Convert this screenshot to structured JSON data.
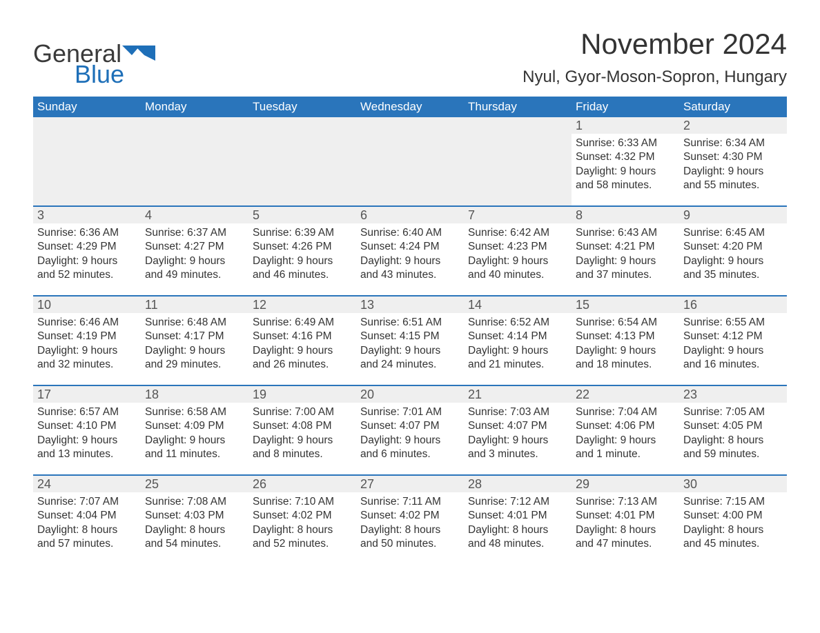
{
  "brand": {
    "word1": "General",
    "word2": "Blue",
    "word1_color": "#3a3a3a",
    "word2_color": "#1e6fb8",
    "flag_color": "#1e6fb8"
  },
  "title": {
    "month": "November 2024",
    "location": "Nyul, Gyor-Moson-Sopron, Hungary",
    "title_fontsize": 42,
    "location_fontsize": 24,
    "text_color": "#333333"
  },
  "calendar": {
    "header_bg": "#2a75bb",
    "header_fg": "#ffffff",
    "week_border_color": "#2a75bb",
    "daynum_bg": "#efefef",
    "daynum_fg": "#555555",
    "body_fg": "#333333",
    "background": "#ffffff",
    "body_fontsize": 15.5,
    "columns": [
      "Sunday",
      "Monday",
      "Tuesday",
      "Wednesday",
      "Thursday",
      "Friday",
      "Saturday"
    ],
    "weeks": [
      [
        {
          "empty": true
        },
        {
          "empty": true
        },
        {
          "empty": true
        },
        {
          "empty": true
        },
        {
          "empty": true
        },
        {
          "day": "1",
          "sunrise": "Sunrise: 6:33 AM",
          "sunset": "Sunset: 4:32 PM",
          "daylight1": "Daylight: 9 hours",
          "daylight2": "and 58 minutes."
        },
        {
          "day": "2",
          "sunrise": "Sunrise: 6:34 AM",
          "sunset": "Sunset: 4:30 PM",
          "daylight1": "Daylight: 9 hours",
          "daylight2": "and 55 minutes."
        }
      ],
      [
        {
          "day": "3",
          "sunrise": "Sunrise: 6:36 AM",
          "sunset": "Sunset: 4:29 PM",
          "daylight1": "Daylight: 9 hours",
          "daylight2": "and 52 minutes."
        },
        {
          "day": "4",
          "sunrise": "Sunrise: 6:37 AM",
          "sunset": "Sunset: 4:27 PM",
          "daylight1": "Daylight: 9 hours",
          "daylight2": "and 49 minutes."
        },
        {
          "day": "5",
          "sunrise": "Sunrise: 6:39 AM",
          "sunset": "Sunset: 4:26 PM",
          "daylight1": "Daylight: 9 hours",
          "daylight2": "and 46 minutes."
        },
        {
          "day": "6",
          "sunrise": "Sunrise: 6:40 AM",
          "sunset": "Sunset: 4:24 PM",
          "daylight1": "Daylight: 9 hours",
          "daylight2": "and 43 minutes."
        },
        {
          "day": "7",
          "sunrise": "Sunrise: 6:42 AM",
          "sunset": "Sunset: 4:23 PM",
          "daylight1": "Daylight: 9 hours",
          "daylight2": "and 40 minutes."
        },
        {
          "day": "8",
          "sunrise": "Sunrise: 6:43 AM",
          "sunset": "Sunset: 4:21 PM",
          "daylight1": "Daylight: 9 hours",
          "daylight2": "and 37 minutes."
        },
        {
          "day": "9",
          "sunrise": "Sunrise: 6:45 AM",
          "sunset": "Sunset: 4:20 PM",
          "daylight1": "Daylight: 9 hours",
          "daylight2": "and 35 minutes."
        }
      ],
      [
        {
          "day": "10",
          "sunrise": "Sunrise: 6:46 AM",
          "sunset": "Sunset: 4:19 PM",
          "daylight1": "Daylight: 9 hours",
          "daylight2": "and 32 minutes."
        },
        {
          "day": "11",
          "sunrise": "Sunrise: 6:48 AM",
          "sunset": "Sunset: 4:17 PM",
          "daylight1": "Daylight: 9 hours",
          "daylight2": "and 29 minutes."
        },
        {
          "day": "12",
          "sunrise": "Sunrise: 6:49 AM",
          "sunset": "Sunset: 4:16 PM",
          "daylight1": "Daylight: 9 hours",
          "daylight2": "and 26 minutes."
        },
        {
          "day": "13",
          "sunrise": "Sunrise: 6:51 AM",
          "sunset": "Sunset: 4:15 PM",
          "daylight1": "Daylight: 9 hours",
          "daylight2": "and 24 minutes."
        },
        {
          "day": "14",
          "sunrise": "Sunrise: 6:52 AM",
          "sunset": "Sunset: 4:14 PM",
          "daylight1": "Daylight: 9 hours",
          "daylight2": "and 21 minutes."
        },
        {
          "day": "15",
          "sunrise": "Sunrise: 6:54 AM",
          "sunset": "Sunset: 4:13 PM",
          "daylight1": "Daylight: 9 hours",
          "daylight2": "and 18 minutes."
        },
        {
          "day": "16",
          "sunrise": "Sunrise: 6:55 AM",
          "sunset": "Sunset: 4:12 PM",
          "daylight1": "Daylight: 9 hours",
          "daylight2": "and 16 minutes."
        }
      ],
      [
        {
          "day": "17",
          "sunrise": "Sunrise: 6:57 AM",
          "sunset": "Sunset: 4:10 PM",
          "daylight1": "Daylight: 9 hours",
          "daylight2": "and 13 minutes."
        },
        {
          "day": "18",
          "sunrise": "Sunrise: 6:58 AM",
          "sunset": "Sunset: 4:09 PM",
          "daylight1": "Daylight: 9 hours",
          "daylight2": "and 11 minutes."
        },
        {
          "day": "19",
          "sunrise": "Sunrise: 7:00 AM",
          "sunset": "Sunset: 4:08 PM",
          "daylight1": "Daylight: 9 hours",
          "daylight2": "and 8 minutes."
        },
        {
          "day": "20",
          "sunrise": "Sunrise: 7:01 AM",
          "sunset": "Sunset: 4:07 PM",
          "daylight1": "Daylight: 9 hours",
          "daylight2": "and 6 minutes."
        },
        {
          "day": "21",
          "sunrise": "Sunrise: 7:03 AM",
          "sunset": "Sunset: 4:07 PM",
          "daylight1": "Daylight: 9 hours",
          "daylight2": "and 3 minutes."
        },
        {
          "day": "22",
          "sunrise": "Sunrise: 7:04 AM",
          "sunset": "Sunset: 4:06 PM",
          "daylight1": "Daylight: 9 hours",
          "daylight2": "and 1 minute."
        },
        {
          "day": "23",
          "sunrise": "Sunrise: 7:05 AM",
          "sunset": "Sunset: 4:05 PM",
          "daylight1": "Daylight: 8 hours",
          "daylight2": "and 59 minutes."
        }
      ],
      [
        {
          "day": "24",
          "sunrise": "Sunrise: 7:07 AM",
          "sunset": "Sunset: 4:04 PM",
          "daylight1": "Daylight: 8 hours",
          "daylight2": "and 57 minutes."
        },
        {
          "day": "25",
          "sunrise": "Sunrise: 7:08 AM",
          "sunset": "Sunset: 4:03 PM",
          "daylight1": "Daylight: 8 hours",
          "daylight2": "and 54 minutes."
        },
        {
          "day": "26",
          "sunrise": "Sunrise: 7:10 AM",
          "sunset": "Sunset: 4:02 PM",
          "daylight1": "Daylight: 8 hours",
          "daylight2": "and 52 minutes."
        },
        {
          "day": "27",
          "sunrise": "Sunrise: 7:11 AM",
          "sunset": "Sunset: 4:02 PM",
          "daylight1": "Daylight: 8 hours",
          "daylight2": "and 50 minutes."
        },
        {
          "day": "28",
          "sunrise": "Sunrise: 7:12 AM",
          "sunset": "Sunset: 4:01 PM",
          "daylight1": "Daylight: 8 hours",
          "daylight2": "and 48 minutes."
        },
        {
          "day": "29",
          "sunrise": "Sunrise: 7:13 AM",
          "sunset": "Sunset: 4:01 PM",
          "daylight1": "Daylight: 8 hours",
          "daylight2": "and 47 minutes."
        },
        {
          "day": "30",
          "sunrise": "Sunrise: 7:15 AM",
          "sunset": "Sunset: 4:00 PM",
          "daylight1": "Daylight: 8 hours",
          "daylight2": "and 45 minutes."
        }
      ]
    ]
  }
}
